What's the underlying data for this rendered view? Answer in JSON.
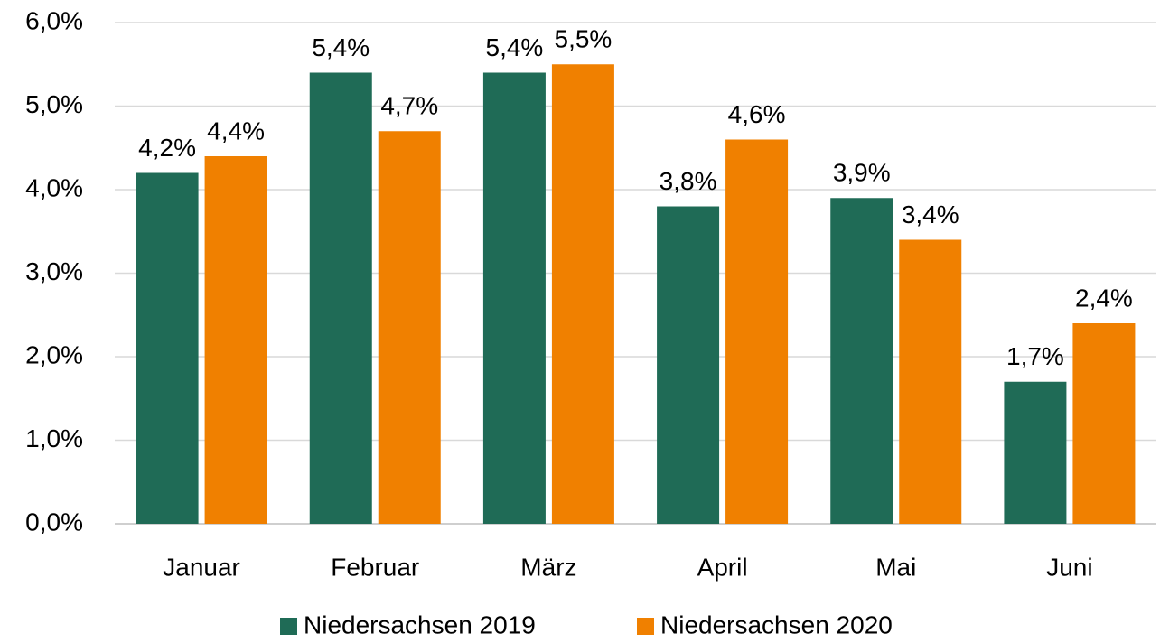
{
  "chart_data": {
    "type": "bar",
    "categories": [
      "Januar",
      "Februar",
      "März",
      "April",
      "Mai",
      "Juni"
    ],
    "series": [
      {
        "name": "Niedersachsen 2019",
        "color": "#1f6b56",
        "values": [
          4.2,
          5.4,
          5.4,
          3.8,
          3.9,
          1.7
        ],
        "value_labels": [
          "4,2%",
          "5,4%",
          "5,4%",
          "3,8%",
          "3,9%",
          "1,7%"
        ]
      },
      {
        "name": "Niedersachsen 2020",
        "color": "#f08000",
        "values": [
          4.4,
          4.7,
          5.5,
          4.6,
          3.4,
          2.4
        ],
        "value_labels": [
          "4,4%",
          "4,7%",
          "5,5%",
          "4,6%",
          "3,4%",
          "2,4%"
        ]
      }
    ],
    "ylim": [
      0,
      6
    ],
    "yticks": [
      {
        "value": 0,
        "label": "0,0%"
      },
      {
        "value": 1,
        "label": "1,0%"
      },
      {
        "value": 2,
        "label": "2,0%"
      },
      {
        "value": 3,
        "label": "3,0%"
      },
      {
        "value": 4,
        "label": "4,0%"
      },
      {
        "value": 5,
        "label": "5,0%"
      },
      {
        "value": 6,
        "label": "6,0%"
      }
    ],
    "grid": true,
    "legend": "bottom"
  }
}
